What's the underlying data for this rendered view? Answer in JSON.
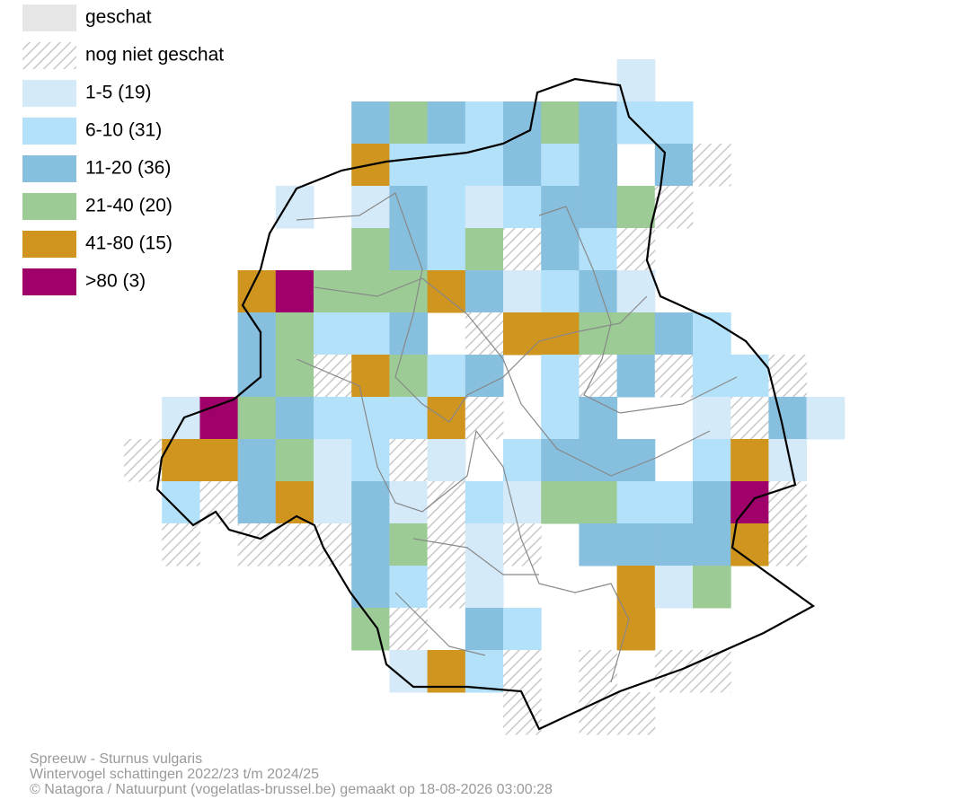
{
  "legend": [
    {
      "label": "geschat",
      "color": "#e6e6e6"
    },
    {
      "label": "nog niet geschat",
      "color": "#c8c8c8",
      "hatched": true
    },
    {
      "label": "1-5 (19)",
      "color": "#d5eaf9"
    },
    {
      "label": "6-10 (31)",
      "color": "#b3e1fa"
    },
    {
      "label": "11-20 (36)",
      "color": "#87bfdf"
    },
    {
      "label": "21-40 (20)",
      "color": "#9ccb95"
    },
    {
      "label": "41-80 (15)",
      "color": "#cf951f"
    },
    {
      "label": ">80 (3)",
      "color": "#a0006a"
    }
  ],
  "footer": [
    "Spreeuw - Sturnus vulgaris",
    "Wintervogel schattingen 2022/23 t/m 2024/25",
    "© Natagora / Natuurpunt (vogelatlas-brussel.be) gemaakt op 18-08-2026 03:00:28"
  ]
}
